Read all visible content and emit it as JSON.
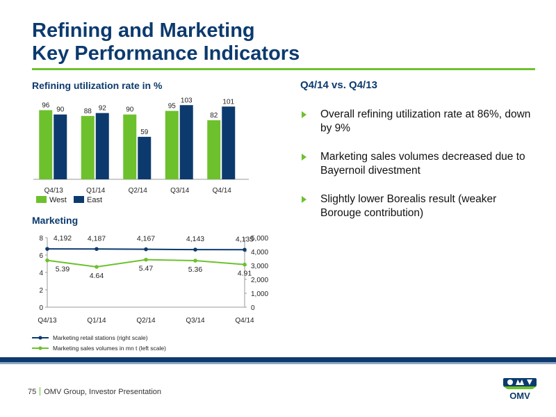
{
  "header": {
    "title_line1": "Refining and Marketing",
    "title_line2": "Key Performance Indicators"
  },
  "colors": {
    "navy": "#0c3a6e",
    "green": "#6dc12d",
    "text": "#1a1a1a"
  },
  "refining": {
    "title": "Refining utilization rate in %"
  },
  "marketing": {
    "title": "Marketing"
  },
  "chart_data": [
    {
      "type": "bar",
      "title": "Refining utilization rate in %",
      "categories": [
        "Q4/13",
        "Q1/14",
        "Q2/14",
        "Q3/14",
        "Q4/14"
      ],
      "series": [
        {
          "name": "West",
          "color": "#6dc12d",
          "values": [
            96,
            88,
            90,
            95,
            82
          ]
        },
        {
          "name": "East",
          "color": "#0c3a6e",
          "values": [
            90,
            92,
            59,
            103,
            101
          ]
        }
      ],
      "ylim": [
        0,
        110
      ],
      "grid": false,
      "legend": "bottom-left",
      "data_labels": true
    },
    {
      "type": "line",
      "title": "Marketing",
      "categories": [
        "Q4/13",
        "Q1/14",
        "Q2/14",
        "Q3/14",
        "Q4/14"
      ],
      "series": [
        {
          "name": "Marketing retail stations (right scale)",
          "axis": "right",
          "color": "#0c3a6e",
          "values": [
            4192,
            4187,
            4167,
            4143,
            4135
          ],
          "labels": [
            "4,192",
            "4,187",
            "4,167",
            "4,143",
            "4,135"
          ]
        },
        {
          "name": "Marketing sales volumes in mn t (left scale)",
          "axis": "left",
          "color": "#6dc12d",
          "values": [
            5.39,
            4.64,
            5.47,
            5.36,
            4.91
          ],
          "labels": [
            "5.39",
            "4.64",
            "5.47",
            "5.36",
            "4.91"
          ]
        }
      ],
      "left_axis": {
        "range": [
          0,
          8
        ],
        "ticks": [
          "0",
          "2",
          "4",
          "6",
          "8"
        ]
      },
      "right_axis": {
        "range": [
          0,
          5000
        ],
        "ticks": [
          "0",
          "1,000",
          "2,000",
          "3,000",
          "4,000",
          "5,000"
        ]
      },
      "grid": false,
      "legend": "bottom"
    }
  ],
  "panel": {
    "heading": "Q4/14 vs. Q4/13",
    "bullets": [
      "Overall refining utilization rate at 86%, down by 9%",
      "Marketing sales volumes decreased due to Bayernoil divestment",
      "Slightly lower Borealis result (weaker Borouge contribution)"
    ]
  },
  "footer": {
    "page_number": "75",
    "text": "OMV Group, Investor Presentation"
  },
  "logo": {
    "text": "OMV",
    "icon": "omv-logo-icon"
  }
}
